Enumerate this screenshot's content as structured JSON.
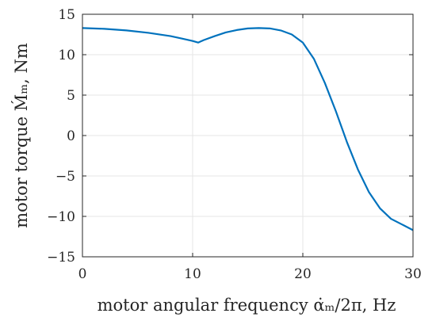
{
  "chart_data": {
    "type": "line",
    "title": "",
    "xlabel": "motor angular frequency α̇ₘ/2π, Hz",
    "ylabel": "motor torque Ḿₘ, Nm",
    "xlim": [
      0,
      30
    ],
    "ylim": [
      -15,
      15
    ],
    "x_ticks": [
      0,
      10,
      20,
      30
    ],
    "y_ticks": [
      -15,
      -10,
      -5,
      0,
      5,
      10,
      15
    ],
    "x_tick_labels": [
      "0",
      "10",
      "20",
      "30"
    ],
    "y_tick_labels": [
      "−15",
      "−10",
      "−5",
      "0",
      "5",
      "10",
      "15"
    ],
    "grid": true,
    "series": [
      {
        "color": "#0072BD",
        "x": [
          0,
          2,
          4,
          6,
          8,
          9,
          10,
          10.5,
          11,
          12,
          13,
          14,
          15,
          16,
          17,
          18,
          19,
          20,
          21,
          22,
          23,
          24,
          25,
          26,
          27,
          28,
          29,
          30
        ],
        "y": [
          13.3,
          13.2,
          13.0,
          12.7,
          12.3,
          12.0,
          11.7,
          11.5,
          11.8,
          12.3,
          12.75,
          13.05,
          13.25,
          13.3,
          13.25,
          13.0,
          12.5,
          11.5,
          9.5,
          6.5,
          3.0,
          -0.8,
          -4.2,
          -7.0,
          -9.0,
          -10.3,
          -11.0,
          -11.7
        ]
      }
    ]
  }
}
